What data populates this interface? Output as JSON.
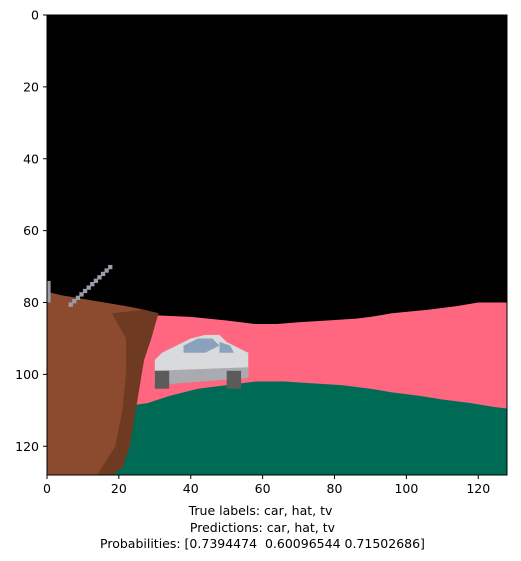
{
  "chart_data": {
    "type": "image",
    "image_width": 128,
    "image_height": 128,
    "xlim": [
      0,
      128
    ],
    "ylim": [
      128,
      0
    ],
    "xticks": [
      0,
      20,
      40,
      60,
      80,
      100,
      120
    ],
    "yticks": [
      0,
      20,
      40,
      60,
      80,
      100,
      120
    ],
    "caption": {
      "line1": "True labels: car, hat, tv",
      "line2": " Predictions: car, hat, tv",
      "line3": " Probabilities: [0.7394474  0.60096544 0.71502686]"
    },
    "colors": {
      "background": "#000000",
      "wall": "#ff6680",
      "floor": "#006b55",
      "hat": "#8c4a2e",
      "hat_dark": "#6e3a22",
      "car_body": "#d9dadc",
      "car_shadow": "#a9abb0",
      "car_window": "#8aa2bd",
      "wheel": "#5b5b5b",
      "antenna": "#9a9ea8"
    }
  }
}
